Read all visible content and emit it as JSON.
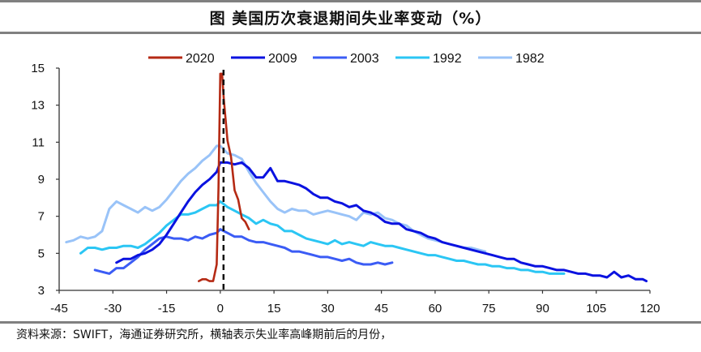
{
  "title": "图  美国历次衰退期间失业率变动（%）",
  "source": "资料来源：SWIFT，海通证券研究所，横轴表示失业率高峰期前后的月份，",
  "chart_data": {
    "type": "line",
    "title": "美国历次衰退期间失业率变动（%）",
    "xlabel": "",
    "ylabel": "",
    "xlim": [
      -45,
      120
    ],
    "ylim": [
      3,
      15
    ],
    "xticks": [
      "-45",
      "-30",
      "-15",
      "0",
      "15",
      "30",
      "45",
      "60",
      "75",
      "90",
      "105",
      "120"
    ],
    "yticks": [
      "3",
      "5",
      "7",
      "9",
      "11",
      "13",
      "15"
    ],
    "legend_position": "top",
    "reference_line": {
      "x": 0,
      "style": "dashed"
    },
    "series": [
      {
        "name": "2020",
        "color": "#b52a14",
        "x": [
          -6,
          -5,
          -4,
          -3,
          -2,
          -1,
          -0.5,
          0,
          0.5,
          1,
          2,
          3,
          4,
          5,
          6,
          7,
          8
        ],
        "y": [
          3.5,
          3.6,
          3.6,
          3.5,
          3.5,
          4.4,
          8.5,
          14.7,
          14.7,
          13.3,
          11.1,
          10.2,
          8.4,
          7.9,
          6.9,
          6.7,
          6.3
        ]
      },
      {
        "name": "2009",
        "color": "#0a12e0",
        "x": [
          -29,
          -27,
          -25,
          -23,
          -21,
          -19,
          -17,
          -15,
          -13,
          -11,
          -9,
          -7,
          -5,
          -3,
          -1,
          0,
          2,
          4,
          6,
          8,
          10,
          12,
          14,
          16,
          18,
          20,
          22,
          24,
          26,
          28,
          30,
          32,
          34,
          36,
          38,
          40,
          42,
          44,
          46,
          48,
          50,
          52,
          54,
          56,
          58,
          60,
          62,
          64,
          66,
          68,
          70,
          72,
          74,
          76,
          78,
          80,
          82,
          84,
          86,
          88,
          90,
          92,
          94,
          96,
          98,
          100,
          102,
          104,
          106,
          108,
          110,
          112,
          114,
          116,
          118,
          119
        ],
        "y": [
          4.5,
          4.7,
          4.7,
          4.9,
          5.0,
          5.2,
          5.5,
          6.0,
          6.6,
          7.2,
          7.8,
          8.3,
          8.7,
          9.0,
          9.4,
          9.9,
          9.9,
          9.8,
          9.9,
          9.6,
          9.1,
          9.1,
          9.6,
          8.9,
          8.9,
          8.8,
          8.7,
          8.5,
          8.2,
          8.0,
          8.0,
          7.8,
          7.7,
          7.5,
          7.6,
          7.3,
          7.2,
          7.0,
          6.7,
          6.6,
          6.6,
          6.3,
          6.2,
          6.1,
          5.9,
          5.8,
          5.6,
          5.5,
          5.4,
          5.3,
          5.2,
          5.1,
          5.0,
          4.9,
          4.8,
          4.7,
          4.7,
          4.5,
          4.4,
          4.3,
          4.3,
          4.2,
          4.1,
          4.1,
          4.0,
          3.9,
          3.9,
          3.8,
          3.8,
          3.7,
          4.0,
          3.7,
          3.8,
          3.6,
          3.6,
          3.5
        ]
      },
      {
        "name": "2003",
        "color": "#3b5cf5",
        "x": [
          -35,
          -33,
          -31,
          -29,
          -27,
          -25,
          -23,
          -21,
          -19,
          -17,
          -15,
          -13,
          -11,
          -9,
          -7,
          -5,
          -3,
          -1,
          0,
          2,
          4,
          6,
          8,
          10,
          12,
          14,
          16,
          18,
          20,
          22,
          24,
          26,
          28,
          30,
          32,
          34,
          36,
          38,
          40,
          42,
          44,
          46,
          48
        ],
        "y": [
          4.1,
          4.0,
          3.9,
          4.2,
          4.2,
          4.5,
          4.8,
          5.2,
          5.5,
          5.8,
          5.9,
          5.8,
          5.8,
          5.7,
          5.9,
          5.8,
          6.0,
          6.1,
          6.3,
          6.1,
          5.9,
          5.9,
          5.7,
          5.6,
          5.6,
          5.5,
          5.4,
          5.3,
          5.1,
          5.1,
          5.0,
          4.9,
          4.8,
          4.8,
          4.7,
          4.6,
          4.7,
          4.5,
          4.4,
          4.4,
          4.5,
          4.4,
          4.5
        ]
      },
      {
        "name": "1992",
        "color": "#2bc6f4",
        "x": [
          -39,
          -37,
          -35,
          -33,
          -31,
          -29,
          -27,
          -25,
          -23,
          -21,
          -19,
          -17,
          -15,
          -13,
          -11,
          -9,
          -7,
          -5,
          -3,
          -1,
          0,
          2,
          4,
          6,
          8,
          10,
          12,
          14,
          16,
          18,
          20,
          22,
          24,
          26,
          28,
          30,
          32,
          34,
          36,
          38,
          40,
          42,
          44,
          46,
          48,
          50,
          52,
          54,
          56,
          58,
          60,
          62,
          64,
          66,
          68,
          70,
          72,
          74,
          76,
          78,
          80,
          82,
          84,
          86,
          88,
          90,
          92,
          94,
          96
        ],
        "y": [
          5.0,
          5.3,
          5.3,
          5.2,
          5.3,
          5.3,
          5.4,
          5.4,
          5.3,
          5.5,
          5.8,
          6.1,
          6.5,
          6.8,
          7.1,
          7.1,
          7.2,
          7.4,
          7.6,
          7.6,
          7.8,
          7.5,
          7.3,
          7.1,
          6.9,
          6.6,
          6.8,
          6.6,
          6.5,
          6.2,
          6.2,
          6.0,
          5.8,
          5.7,
          5.6,
          5.5,
          5.7,
          5.5,
          5.6,
          5.5,
          5.4,
          5.6,
          5.5,
          5.4,
          5.4,
          5.3,
          5.2,
          5.1,
          5.0,
          4.9,
          4.9,
          4.8,
          4.7,
          4.6,
          4.6,
          4.5,
          4.4,
          4.4,
          4.3,
          4.3,
          4.2,
          4.2,
          4.1,
          4.1,
          4.0,
          4.0,
          3.9,
          3.9,
          3.9
        ]
      },
      {
        "name": "1982",
        "color": "#99c3f8",
        "x": [
          -43,
          -41,
          -39,
          -37,
          -35,
          -33,
          -31,
          -29,
          -27,
          -25,
          -23,
          -21,
          -19,
          -17,
          -15,
          -13,
          -11,
          -9,
          -7,
          -5,
          -3,
          -1,
          0,
          2,
          4,
          6,
          8,
          10,
          12,
          14,
          16,
          18,
          20,
          22,
          24,
          26,
          28,
          30,
          32,
          34,
          36,
          38,
          40,
          42,
          44,
          46,
          48,
          50,
          52,
          54,
          56,
          58,
          60,
          62,
          64,
          66,
          68,
          70,
          72,
          74
        ],
        "y": [
          5.6,
          5.7,
          5.9,
          5.8,
          5.9,
          6.2,
          7.4,
          7.8,
          7.6,
          7.4,
          7.2,
          7.5,
          7.3,
          7.5,
          7.9,
          8.4,
          8.9,
          9.3,
          9.6,
          10.0,
          10.3,
          10.8,
          10.8,
          10.4,
          10.3,
          10.1,
          9.4,
          8.8,
          8.3,
          7.8,
          7.4,
          7.2,
          7.4,
          7.3,
          7.3,
          7.1,
          7.2,
          7.3,
          7.2,
          7.1,
          7.0,
          6.8,
          7.2,
          7.1,
          7.2,
          6.9,
          6.8,
          6.6,
          6.5,
          6.2,
          6.0,
          5.8,
          5.7,
          5.6,
          5.5,
          5.4,
          5.3,
          5.3,
          5.2,
          5.1
        ]
      }
    ]
  }
}
